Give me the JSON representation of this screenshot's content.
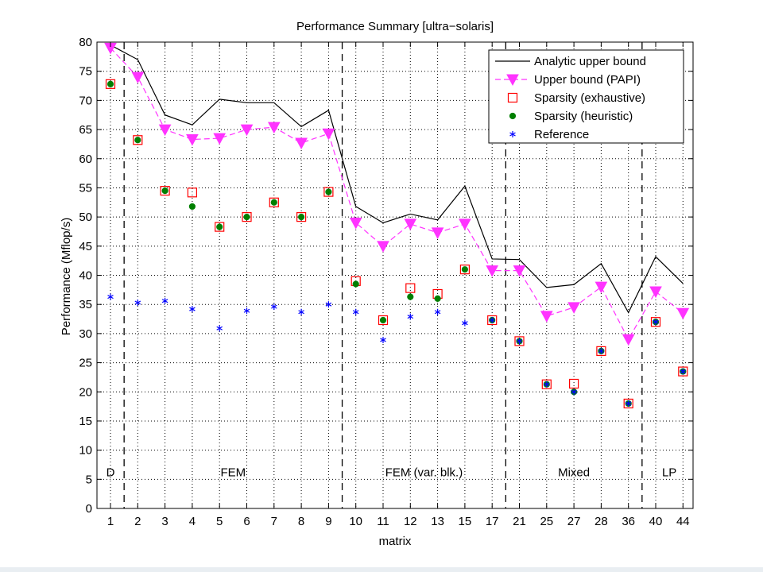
{
  "chart_data": {
    "type": "line",
    "title": "Performance Summary  [ultra−solaris]",
    "xlabel": "matrix",
    "ylabel": "Performance (Mflop/s)",
    "ylim": [
      0,
      80
    ],
    "yticks": [
      0,
      5,
      10,
      15,
      20,
      25,
      30,
      35,
      40,
      45,
      50,
      55,
      60,
      65,
      70,
      75,
      80
    ],
    "grid": true,
    "legend_position": "top-right",
    "categories": [
      "1",
      "2",
      "3",
      "4",
      "5",
      "6",
      "7",
      "8",
      "9",
      "10",
      "11",
      "12",
      "13",
      "15",
      "17",
      "21",
      "25",
      "27",
      "28",
      "36",
      "40",
      "44"
    ],
    "series": [
      {
        "name": "Analytic upper bound",
        "marker": "none",
        "line": "solid",
        "color": "#000000",
        "values": [
          79.5,
          77,
          67.5,
          65.8,
          70.2,
          69.6,
          69.6,
          65.5,
          68.3,
          51.8,
          49,
          50.5,
          49.5,
          55.3,
          42.8,
          42.7,
          37.9,
          38.4,
          42,
          33.6,
          43.2,
          38.6
        ]
      },
      {
        "name": "Upper bound (PAPI)",
        "marker": "triangle-down",
        "line": "dashed",
        "color": "#ff33ff",
        "values": [
          79,
          74,
          65,
          63.3,
          63.5,
          65,
          65.4,
          62.7,
          64.3,
          49,
          45,
          48.8,
          47.3,
          48.8,
          40.8,
          40.8,
          33,
          34.5,
          38,
          29,
          37.2,
          33.5
        ]
      },
      {
        "name": "Sparsity (exhaustive)",
        "marker": "square-open",
        "line": "none",
        "color": "#ff0000",
        "values": [
          72.8,
          63.2,
          54.5,
          54.2,
          48.3,
          50,
          52.5,
          50,
          54.3,
          39,
          32.3,
          37.8,
          36.8,
          41,
          32.3,
          28.7,
          21.3,
          21.4,
          27,
          18,
          32,
          23.5
        ]
      },
      {
        "name": "Sparsity (heuristic)",
        "marker": "circle-filled",
        "line": "none",
        "color": "#007f00",
        "values": [
          72.8,
          63.2,
          54.5,
          51.8,
          48.3,
          50,
          52.5,
          50,
          54.3,
          38.5,
          32.3,
          36.3,
          36,
          41,
          32.3,
          28.7,
          21.3,
          20,
          27,
          18,
          32,
          23.5
        ]
      },
      {
        "name": "Reference",
        "marker": "asterisk",
        "line": "none",
        "color": "#0000ff",
        "values": [
          36.3,
          35.3,
          35.6,
          34.2,
          30.9,
          33.9,
          34.6,
          33.7,
          35,
          33.7,
          28.9,
          32.9,
          33.7,
          31.8,
          32.3,
          28.7,
          21.3,
          20,
          27,
          18,
          32,
          23.5
        ]
      }
    ],
    "dividers_after_index": [
      0,
      8,
      14,
      19
    ],
    "groups": [
      {
        "label": "D",
        "from_index": 0,
        "to_index": 0
      },
      {
        "label": "FEM",
        "from_index": 1,
        "to_index": 8
      },
      {
        "label": "FEM (var. blk.)",
        "from_index": 9,
        "to_index": 14
      },
      {
        "label": "Mixed",
        "from_index": 15,
        "to_index": 19
      },
      {
        "label": "LP",
        "from_index": 20,
        "to_index": 21
      }
    ]
  }
}
